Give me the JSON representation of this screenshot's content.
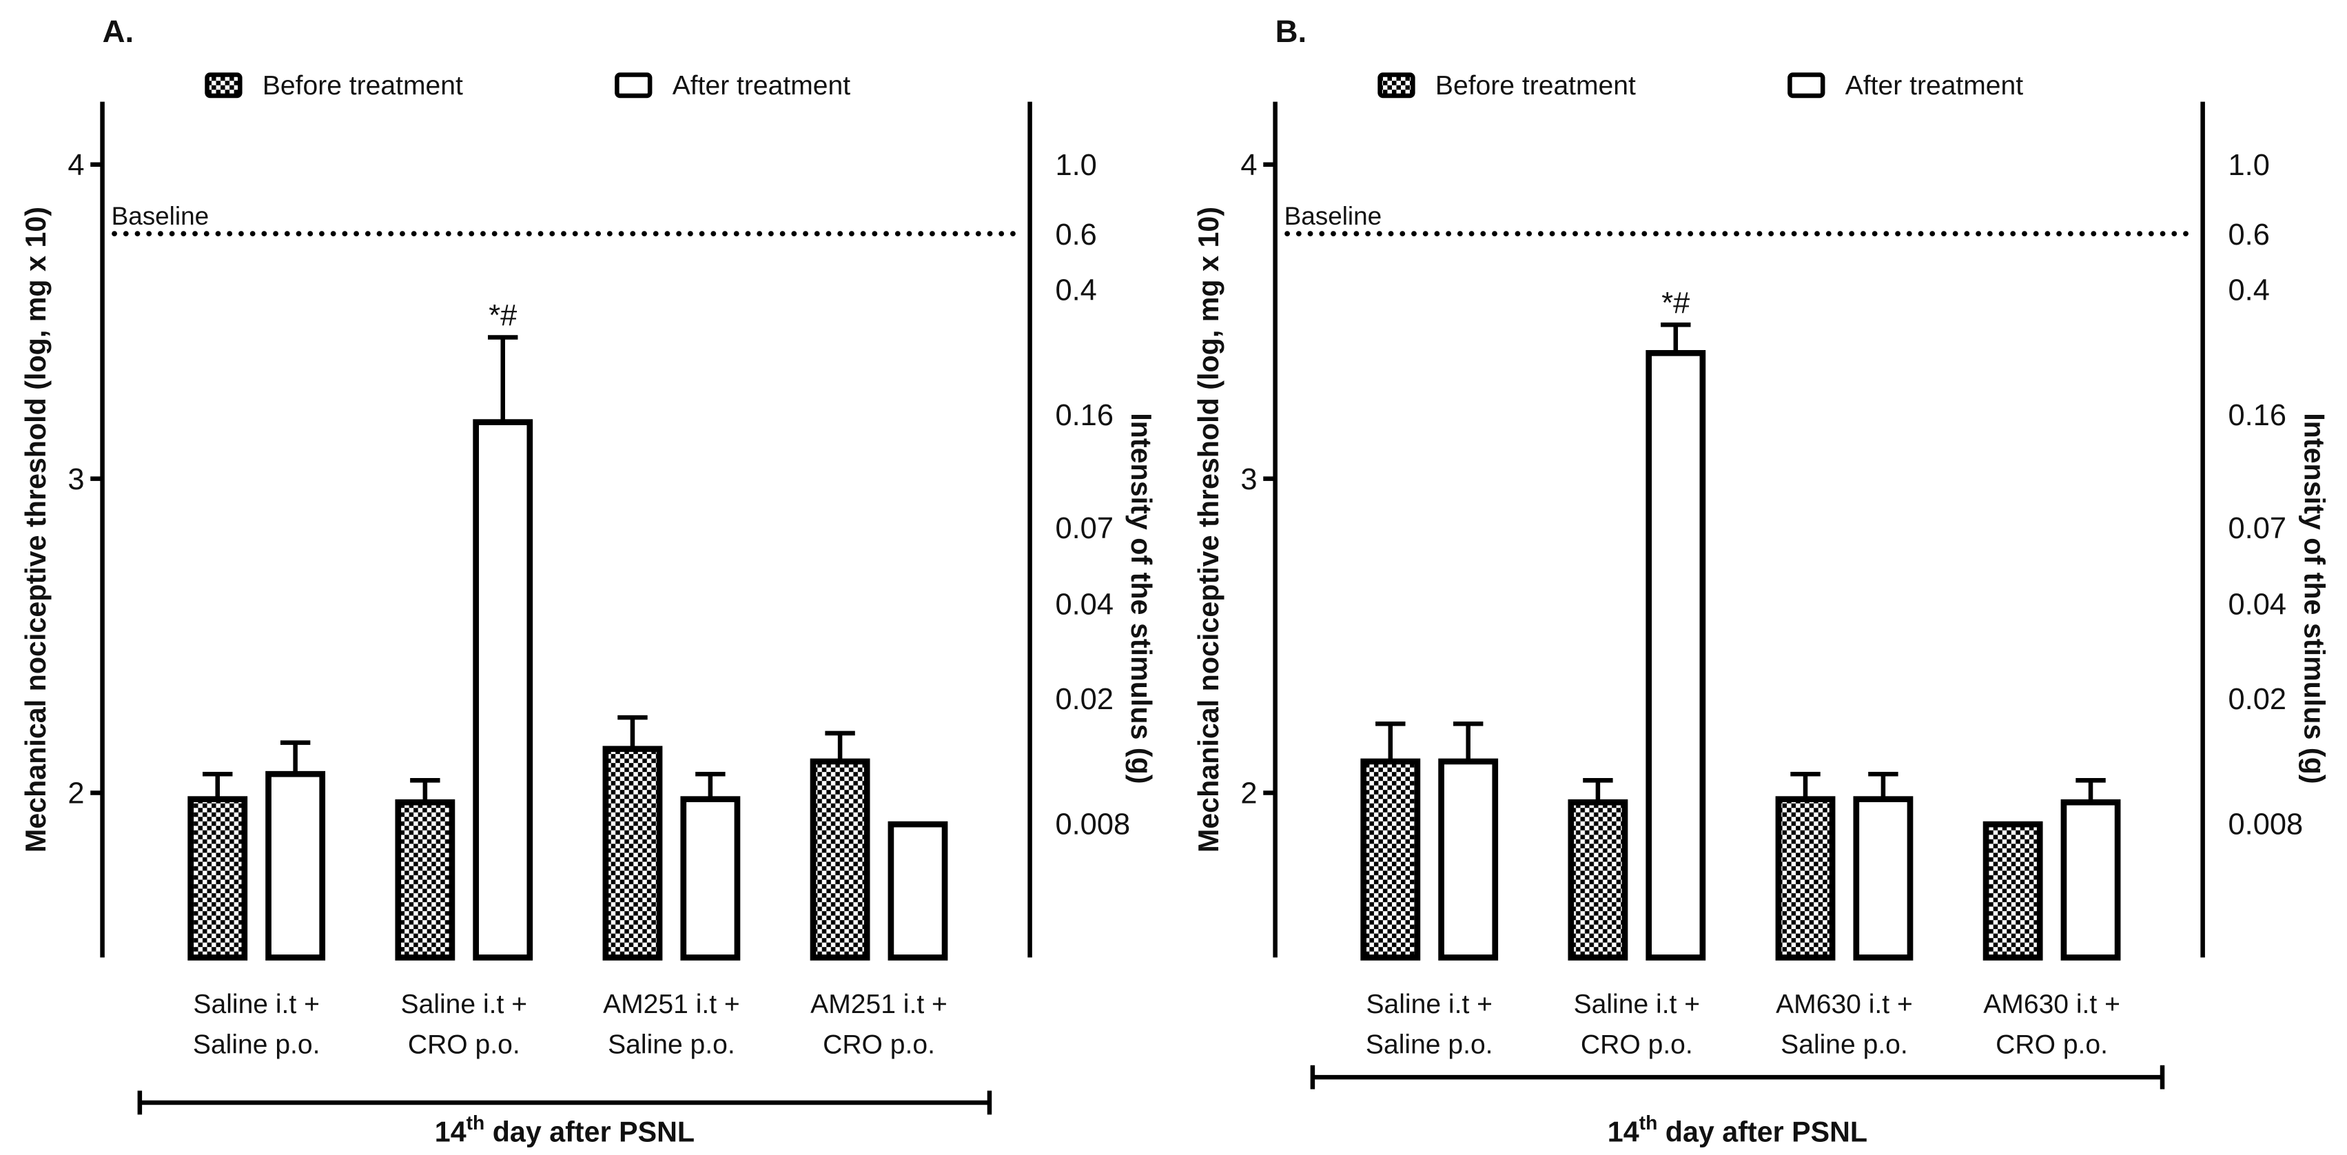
{
  "chart_data": [
    {
      "type": "bar",
      "panel": "A.",
      "ylabel": "Mechanical nociceptive threshold (log, mg x 10)",
      "y2label": "Intensity of the stimulus (g)",
      "categories": [
        [
          "Saline i.t +",
          "Saline p.o."
        ],
        [
          "Saline i.t +",
          "CRO p.o."
        ],
        [
          "AM251 i.t +",
          "Saline p.o."
        ],
        [
          "AM251 i.t +",
          "CRO p.o."
        ]
      ],
      "series": [
        {
          "name": "Before treatment",
          "color": "#000000",
          "pattern": "checkerboard",
          "values": [
            1.98,
            1.97,
            2.14,
            2.1
          ],
          "errors": [
            0.08,
            0.07,
            0.1,
            0.09
          ],
          "annotations": [
            null,
            null,
            null,
            null
          ]
        },
        {
          "name": "After treatment",
          "color": "#ffffff",
          "pattern": "none",
          "values": [
            2.06,
            3.18,
            1.98,
            1.9
          ],
          "errors": [
            0.1,
            0.27,
            0.08,
            0
          ],
          "annotations": [
            null,
            "*#",
            null,
            null
          ]
        }
      ],
      "ylim": [
        1.476,
        4.2
      ],
      "yticks": [
        2,
        3,
        4
      ],
      "y2lim": [
        0.003,
        1.585
      ],
      "y2log": true,
      "y2ticks": [
        {
          "value": 1,
          "label": "1.0"
        },
        0.6,
        0.4,
        0.16,
        0.07,
        0.04,
        0.02,
        0.008
      ],
      "baseline": {
        "text": "Baseline",
        "value": 3.78
      },
      "xlabel": {
        "number": "14",
        "suffix": "th",
        "rest": "day after PSNL"
      }
    },
    {
      "type": "bar",
      "panel": "B.",
      "ylabel": "Mechanical nociceptive threshold (log, mg x 10)",
      "y2label": "Intensity of the stimulus (g)",
      "categories": [
        [
          "Saline i.t +",
          "Saline p.o."
        ],
        [
          "Saline i.t +",
          "CRO p.o."
        ],
        [
          "AM630 i.t +",
          "Saline p.o."
        ],
        [
          "AM630 i.t +",
          "CRO p.o."
        ]
      ],
      "series": [
        {
          "name": "Before treatment",
          "color": "#000000",
          "pattern": "checkerboard",
          "values": [
            2.1,
            1.97,
            1.98,
            1.9
          ],
          "errors": [
            0.12,
            0.07,
            0.08,
            0
          ],
          "annotations": [
            null,
            null,
            null,
            null
          ]
        },
        {
          "name": "After treatment",
          "color": "#ffffff",
          "pattern": "none",
          "values": [
            2.1,
            3.4,
            1.98,
            1.97
          ],
          "errors": [
            0.12,
            0.09,
            0.08,
            0.07
          ],
          "annotations": [
            null,
            "*#",
            null,
            null
          ]
        }
      ],
      "ylim": [
        1.476,
        4.2
      ],
      "yticks": [
        2,
        3,
        4
      ],
      "y2lim": [
        0.003,
        1.585
      ],
      "y2log": true,
      "y2ticks": [
        {
          "value": 1,
          "label": "1.0"
        },
        0.6,
        0.4,
        0.16,
        0.07,
        0.04,
        0.02,
        0.008
      ],
      "baseline": {
        "text": "Baseline",
        "value": 3.78
      },
      "xlabel": {
        "number": "14",
        "suffix": "th",
        "rest": "day after PSNL"
      }
    }
  ]
}
